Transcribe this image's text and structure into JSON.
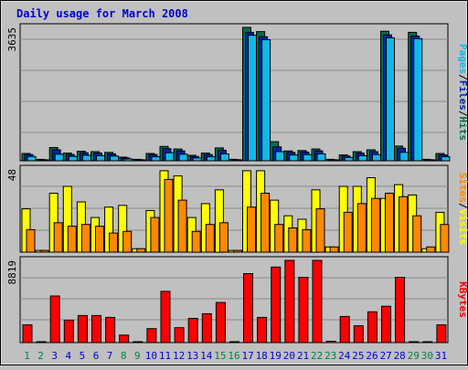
{
  "title": "Daily usage for March 2008",
  "colors": {
    "background": "#c0c0c0",
    "plot_bg": "#c0c0c0",
    "grid": "#888888",
    "title": "#0000cc",
    "hits": "#006e4c",
    "files": "#0024a8",
    "pages": "#12b8e8",
    "visits": "#ffff00",
    "sites": "#ff8800",
    "kbytes": "#ff0000",
    "weekend_label": "#008040",
    "weekday_label": "#0000cc",
    "separator": "#000000"
  },
  "chart_data": [
    {
      "type": "bar",
      "panel": "hits-files-pages",
      "y_max_label": "3635",
      "ylim": [
        0,
        3635
      ],
      "side_labels": [
        "Pages",
        "/",
        "Files",
        "/",
        "Hits"
      ],
      "side_label_colors": [
        "#12b8e8",
        "#000000",
        "#0024a8",
        "#000000",
        "#006e4c"
      ],
      "categories": [
        "1",
        "2",
        "3",
        "4",
        "5",
        "6",
        "7",
        "8",
        "9",
        "10",
        "11",
        "12",
        "13",
        "14",
        "15",
        "16",
        "17",
        "18",
        "19",
        "20",
        "21",
        "22",
        "23",
        "24",
        "25",
        "26",
        "27",
        "28",
        "29",
        "30",
        "31"
      ],
      "series": [
        {
          "name": "Hits",
          "color": "#006e4c",
          "values": [
            200,
            40,
            360,
            210,
            260,
            250,
            230,
            100,
            40,
            200,
            390,
            320,
            150,
            210,
            350,
            40,
            3635,
            3520,
            520,
            270,
            280,
            320,
            40,
            160,
            250,
            300,
            3530,
            400,
            3500,
            40,
            200
          ]
        },
        {
          "name": "Files",
          "color": "#0024a8",
          "values": [
            170,
            30,
            300,
            170,
            220,
            210,
            190,
            80,
            30,
            170,
            330,
            270,
            120,
            170,
            290,
            30,
            3500,
            3380,
            380,
            230,
            240,
            270,
            30,
            130,
            210,
            250,
            3430,
            340,
            3400,
            30,
            160
          ]
        },
        {
          "name": "Pages",
          "color": "#12b8e8",
          "values": [
            120,
            20,
            180,
            120,
            150,
            140,
            130,
            50,
            20,
            110,
            220,
            180,
            80,
            110,
            190,
            20,
            3420,
            3300,
            250,
            160,
            170,
            190,
            20,
            90,
            140,
            170,
            3350,
            230,
            3330,
            20,
            110
          ]
        }
      ]
    },
    {
      "type": "bar",
      "panel": "visits-sites",
      "y_max_label": "48",
      "ylim": [
        0,
        48
      ],
      "side_labels": [
        "Sites",
        "/",
        "Visits"
      ],
      "side_label_colors": [
        "#ff8800",
        "#000000",
        "#ffff00"
      ],
      "categories": [
        "1",
        "2",
        "3",
        "4",
        "5",
        "6",
        "7",
        "8",
        "9",
        "10",
        "11",
        "12",
        "13",
        "14",
        "15",
        "16",
        "17",
        "18",
        "19",
        "20",
        "21",
        "22",
        "23",
        "24",
        "25",
        "26",
        "27",
        "28",
        "29",
        "30",
        "31"
      ],
      "series": [
        {
          "name": "Visits",
          "color": "#ffff00",
          "values": [
            25,
            1,
            34,
            38,
            29,
            20,
            26,
            27,
            2,
            24,
            47,
            44,
            20,
            28,
            36,
            1,
            47,
            47,
            30,
            21,
            19,
            36,
            3,
            38,
            38,
            43,
            31,
            39,
            33,
            2,
            23
          ]
        },
        {
          "name": "Sites",
          "color": "#ff8800",
          "values": [
            13,
            1,
            17,
            15,
            16,
            15,
            11,
            12,
            2,
            20,
            42,
            30,
            12,
            16,
            17,
            1,
            26,
            34,
            16,
            14,
            13,
            25,
            3,
            23,
            28,
            31,
            34,
            32,
            21,
            3,
            16
          ]
        }
      ]
    },
    {
      "type": "bar",
      "panel": "kbytes",
      "y_max_label": "8819",
      "ylim": [
        0,
        8819
      ],
      "side_labels": [
        "KBytes"
      ],
      "side_label_colors": [
        "#ff0000"
      ],
      "categories": [
        "1",
        "2",
        "3",
        "4",
        "5",
        "6",
        "7",
        "8",
        "9",
        "10",
        "11",
        "12",
        "13",
        "14",
        "15",
        "16",
        "17",
        "18",
        "19",
        "20",
        "21",
        "22",
        "23",
        "24",
        "25",
        "26",
        "27",
        "28",
        "29",
        "30",
        "31"
      ],
      "series": [
        {
          "name": "KBytes",
          "color": "#ff0000",
          "values": [
            1900,
            80,
            5000,
            2400,
            2900,
            2900,
            2700,
            800,
            80,
            1500,
            5500,
            1600,
            2600,
            3100,
            4300,
            80,
            7400,
            2700,
            8100,
            8819,
            7000,
            8819,
            150,
            2800,
            1800,
            3300,
            3900,
            7000,
            80,
            80,
            1900
          ]
        }
      ]
    }
  ],
  "x_axis": {
    "labels": [
      "1",
      "2",
      "3",
      "4",
      "5",
      "6",
      "7",
      "8",
      "9",
      "10",
      "11",
      "12",
      "13",
      "14",
      "15",
      "16",
      "17",
      "18",
      "19",
      "20",
      "21",
      "22",
      "23",
      "24",
      "25",
      "26",
      "27",
      "28",
      "29",
      "30",
      "31"
    ],
    "weekend_days": [
      "1",
      "2",
      "8",
      "9",
      "15",
      "16",
      "22",
      "23",
      "29",
      "30"
    ]
  }
}
